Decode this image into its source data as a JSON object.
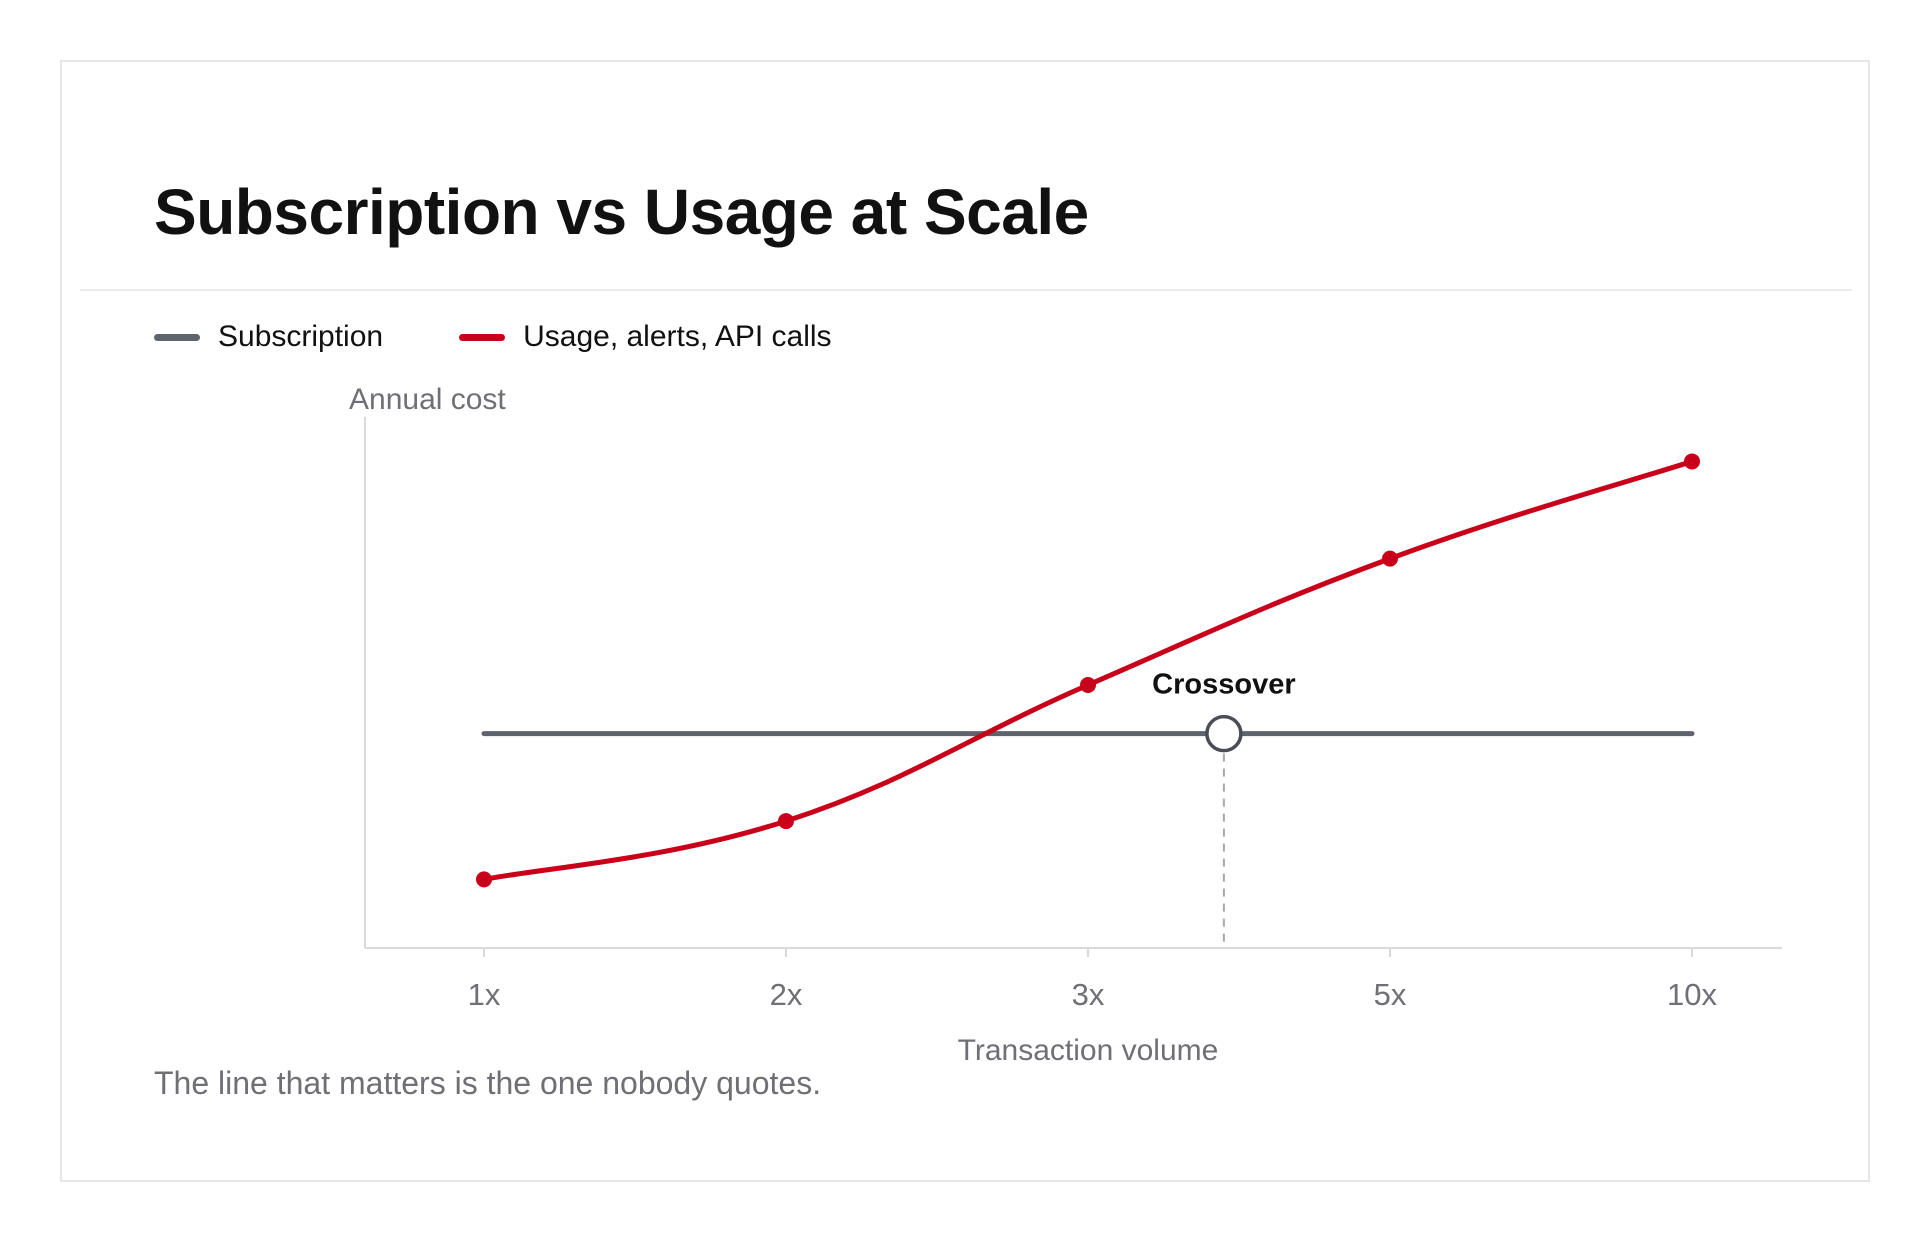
{
  "title": "Subscription vs Usage at Scale",
  "footnote": "The line that matters is the one nobody quotes.",
  "colors": {
    "subscription": "#5f636e",
    "usage": "#c8001a",
    "axis": "#d9d9d9",
    "text_muted": "#6f6f76"
  },
  "chart_data": {
    "type": "line",
    "categories": [
      "1x",
      "2x",
      "3x",
      "5x",
      "10x"
    ],
    "xlabel": "Transaction volume",
    "ylabel": "Annual cost",
    "ylim": [
      0,
      100
    ],
    "grid": false,
    "legend_position": "top-left",
    "series": [
      {
        "name": "Subscription",
        "values": [
          40,
          40,
          40,
          40,
          40
        ]
      },
      {
        "name": "Usage, alerts, API calls",
        "values": [
          10,
          22,
          50,
          76,
          96
        ]
      }
    ],
    "annotations": [
      {
        "label": "Crossover",
        "x_category_position": 2.45,
        "value": 40
      }
    ]
  }
}
